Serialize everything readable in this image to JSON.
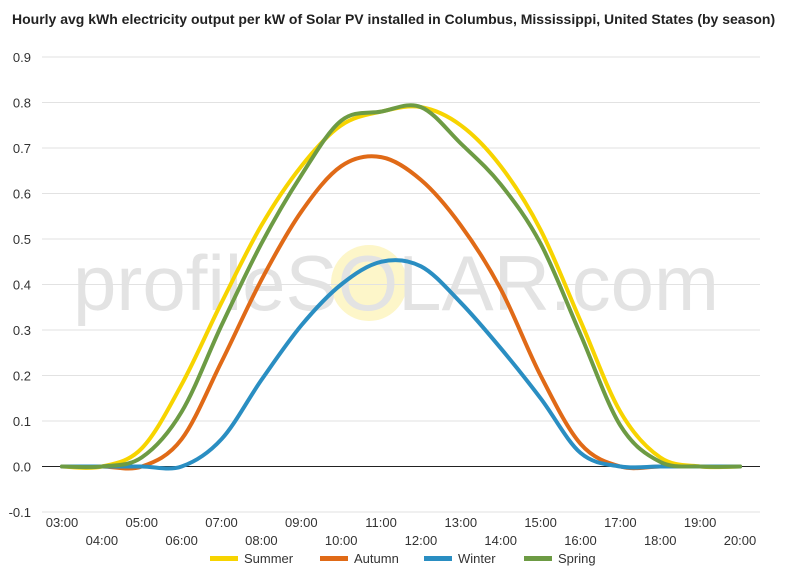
{
  "chart_data": {
    "type": "line",
    "title": "Hourly avg kWh electricity output per kW of Solar PV installed in Columbus, Mississippi, United States (by season)",
    "watermark": "profileSOLAR.com",
    "xlabel": "",
    "ylabel": "",
    "ylim": [
      -0.1,
      0.9
    ],
    "yticks": [
      "0.9",
      "0.8",
      "0.7",
      "0.6",
      "0.5",
      "0.4",
      "0.3",
      "0.2",
      "0.1",
      "0.0",
      "-0.1"
    ],
    "x": [
      "03:00",
      "04:00",
      "05:00",
      "06:00",
      "07:00",
      "08:00",
      "09:00",
      "10:00",
      "11:00",
      "12:00",
      "13:00",
      "14:00",
      "15:00",
      "16:00",
      "17:00",
      "18:00",
      "19:00",
      "20:00"
    ],
    "grid": true,
    "legend_position": "bottom",
    "series": [
      {
        "name": "Summer",
        "color": "#f7d400",
        "values": [
          0.0,
          0.0,
          0.04,
          0.18,
          0.36,
          0.53,
          0.66,
          0.75,
          0.78,
          0.79,
          0.75,
          0.66,
          0.52,
          0.32,
          0.12,
          0.02,
          0.0,
          0.0
        ]
      },
      {
        "name": "Autumn",
        "color": "#e06a17",
        "values": [
          0.0,
          0.0,
          0.0,
          0.06,
          0.23,
          0.41,
          0.56,
          0.66,
          0.68,
          0.63,
          0.53,
          0.39,
          0.2,
          0.05,
          0.0,
          0.0,
          0.0,
          0.0
        ]
      },
      {
        "name": "Winter",
        "color": "#2a8ec2",
        "values": [
          0.0,
          0.0,
          0.0,
          0.0,
          0.06,
          0.19,
          0.31,
          0.4,
          0.45,
          0.44,
          0.36,
          0.26,
          0.15,
          0.03,
          0.0,
          0.0,
          0.0,
          0.0
        ]
      },
      {
        "name": "Spring",
        "color": "#6d9b44",
        "values": [
          0.0,
          0.0,
          0.02,
          0.12,
          0.31,
          0.49,
          0.64,
          0.76,
          0.78,
          0.79,
          0.71,
          0.62,
          0.49,
          0.29,
          0.09,
          0.01,
          0.0,
          0.0
        ]
      }
    ]
  }
}
